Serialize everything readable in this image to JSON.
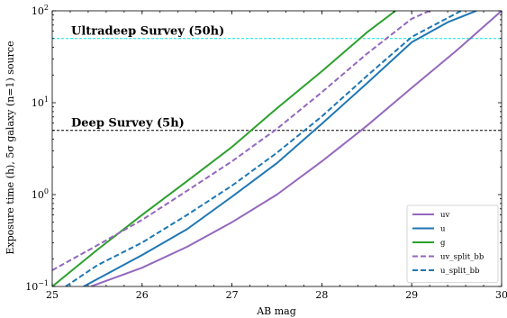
{
  "chart_data": {
    "type": "line",
    "xlabel": "AB mag",
    "ylabel": "Exposure time (h), 5σ galaxy (n=1) source",
    "xlim": [
      25,
      30
    ],
    "ylim": [
      0.1,
      100
    ],
    "yscale": "log",
    "grid": false,
    "legend_position": "lower-right",
    "x_ticks": [
      {
        "value": 25,
        "label": "25"
      },
      {
        "value": 26,
        "label": "26"
      },
      {
        "value": 27,
        "label": "27"
      },
      {
        "value": 28,
        "label": "28"
      },
      {
        "value": 29,
        "label": "29"
      },
      {
        "value": 30,
        "label": "30"
      }
    ],
    "y_ticks": [
      {
        "value": 0.1,
        "base": "10",
        "exp": "−1"
      },
      {
        "value": 1,
        "base": "10",
        "exp": "0"
      },
      {
        "value": 10,
        "base": "10",
        "exp": "1"
      },
      {
        "value": 100,
        "base": "10",
        "exp": "2"
      }
    ],
    "series": [
      {
        "name": "uv",
        "color": "#9467bd",
        "dash": "solid",
        "x": [
          25.43,
          26.0,
          26.5,
          27.0,
          27.5,
          28.0,
          28.5,
          29.0,
          29.5,
          30.0
        ],
        "y": [
          0.1,
          0.16,
          0.27,
          0.5,
          1.0,
          2.3,
          5.6,
          14.5,
          37,
          100
        ]
      },
      {
        "name": "u",
        "color": "#1f77b4",
        "dash": "solid",
        "x": [
          25.35,
          25.5,
          26.0,
          26.5,
          27.0,
          27.5,
          28.0,
          28.5,
          29.0,
          29.4,
          29.72
        ],
        "y": [
          0.1,
          0.12,
          0.22,
          0.42,
          0.95,
          2.2,
          5.9,
          16.2,
          45.5,
          75,
          100
        ]
      },
      {
        "name": "g",
        "color": "#2ca02c",
        "dash": "solid",
        "x": [
          25.0,
          25.5,
          26.0,
          26.5,
          27.0,
          27.5,
          28.0,
          28.5,
          28.82
        ],
        "y": [
          0.1,
          0.25,
          0.6,
          1.4,
          3.3,
          8.7,
          22,
          58,
          100
        ]
      },
      {
        "name": "uv_split_bb",
        "color": "#9467bd",
        "dash": "dashed",
        "x": [
          25.0,
          25.5,
          26.0,
          26.5,
          27.0,
          27.5,
          28.0,
          28.5,
          29.0,
          29.2
        ],
        "y": [
          0.15,
          0.28,
          0.53,
          1.1,
          2.3,
          5.2,
          13,
          34,
          82,
          100
        ]
      },
      {
        "name": "u_split_bb",
        "color": "#1f77b4",
        "dash": "dashed",
        "x": [
          25.15,
          25.5,
          26.0,
          26.5,
          27.0,
          27.5,
          28.0,
          28.5,
          29.0,
          29.55
        ],
        "y": [
          0.1,
          0.17,
          0.3,
          0.6,
          1.25,
          2.85,
          7.1,
          19.5,
          52,
          100
        ]
      }
    ],
    "reference_lines": [
      {
        "y": 50,
        "label": "Ultradeep Survey (50h)",
        "color": "#00e5e5",
        "label_color": "#33e6e6"
      },
      {
        "y": 5,
        "label": "Deep Survey (5h)",
        "color": "#000000",
        "label_color": "#222222"
      }
    ]
  }
}
